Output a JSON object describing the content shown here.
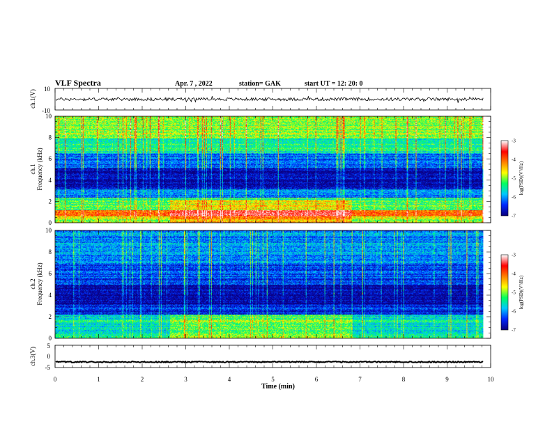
{
  "header": {
    "title": "VLF Spectra",
    "date": "Apr. 7 , 2022",
    "station": "station= GAK",
    "start": "start UT = 12: 20: 0"
  },
  "chart_data": [
    {
      "type": "line",
      "name": "ch1-waveform",
      "ylabel": "ch.1(V)",
      "yticks": [
        "10",
        "-10"
      ],
      "ylim": [
        -10,
        10
      ],
      "xlim": [
        0,
        10
      ],
      "mean": 0,
      "noise_amplitude": 1.4
    },
    {
      "type": "heatmap",
      "name": "ch1-spectrogram",
      "ylabel_line1": "ch.1",
      "ylabel_line2": "Frequency (kHz)",
      "xlim": [
        0,
        10
      ],
      "ylim": [
        0,
        10
      ],
      "yticks": [
        "0",
        "2",
        "4",
        "6",
        "8",
        "10"
      ],
      "data_end_min": 9.83,
      "colorbar": {
        "label": "log(PSD)(V²/Hz)",
        "ticks": [
          "-3",
          "-4",
          "-5",
          "-6",
          "-7"
        ],
        "range": [
          -7,
          -3
        ],
        "colors": [
          "#0a0080",
          "#0028ff",
          "#00c8ff",
          "#00ff60",
          "#ffff00",
          "#ff8000",
          "#ff0000",
          "#ffffff"
        ]
      },
      "bands": [
        {
          "f_lo": 0.0,
          "f_hi": 0.6,
          "level": -4.9
        },
        {
          "f_lo": 0.6,
          "f_hi": 1.2,
          "level": -4.0
        },
        {
          "f_lo": 1.2,
          "f_hi": 2.4,
          "level": -5.3
        },
        {
          "f_lo": 2.4,
          "f_hi": 3.2,
          "level": -6.2
        },
        {
          "f_lo": 3.2,
          "f_hi": 5.2,
          "level": -6.8
        },
        {
          "f_lo": 5.2,
          "f_hi": 6.6,
          "level": -6.2
        },
        {
          "f_lo": 6.6,
          "f_hi": 8.0,
          "level": -5.5
        },
        {
          "f_lo": 8.0,
          "f_hi": 10.0,
          "level": -5.0
        }
      ],
      "enhanced_interval_min": [
        2.63,
        6.8
      ]
    },
    {
      "type": "heatmap",
      "name": "ch2-spectrogram",
      "ylabel_line1": "ch.2",
      "ylabel_line2": "Frequency (kHz)",
      "xlim": [
        0,
        10
      ],
      "ylim": [
        0,
        10
      ],
      "yticks": [
        "0",
        "2",
        "4",
        "6",
        "8",
        "10"
      ],
      "data_end_min": 9.83,
      "colorbar": {
        "label": "log(PSD)(V²/Hz)",
        "ticks": [
          "-3",
          "-4",
          "-5",
          "-6",
          "-7"
        ],
        "range": [
          -7,
          -3
        ],
        "colors": [
          "#0a0080",
          "#0028ff",
          "#00c8ff",
          "#00ff60",
          "#ffff00",
          "#ff8000",
          "#ff0000",
          "#ffffff"
        ]
      },
      "bands": [
        {
          "f_lo": 0.0,
          "f_hi": 0.7,
          "level": -5.6
        },
        {
          "f_lo": 0.7,
          "f_hi": 2.2,
          "level": -5.6
        },
        {
          "f_lo": 2.2,
          "f_hi": 3.2,
          "level": -6.5
        },
        {
          "f_lo": 3.2,
          "f_hi": 5.0,
          "level": -6.9
        },
        {
          "f_lo": 5.0,
          "f_hi": 7.0,
          "level": -6.4
        },
        {
          "f_lo": 7.0,
          "f_hi": 10.0,
          "level": -6.1
        }
      ],
      "enhanced_interval_min": [
        2.63,
        6.8
      ]
    },
    {
      "type": "line",
      "name": "ch3-waveform",
      "ylabel": "ch.3(V)",
      "yticks": [
        "5",
        "0",
        "-5"
      ],
      "ylim": [
        -5,
        5
      ],
      "xlim": [
        0,
        10
      ],
      "mean": -2.5,
      "noise_amplitude": 0.25
    }
  ],
  "xaxis": {
    "label": "Time (min)",
    "ticks": [
      "0",
      "1",
      "2",
      "3",
      "4",
      "5",
      "6",
      "7",
      "8",
      "9",
      "10"
    ],
    "range": [
      0,
      10
    ]
  }
}
